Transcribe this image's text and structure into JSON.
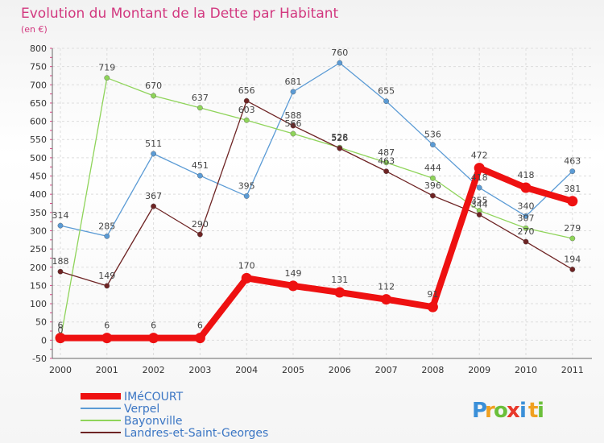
{
  "chart_data": {
    "type": "line",
    "title": "Evolution du Montant de la Dette par Habitant",
    "subtitle": "(en €)",
    "xlabel": "",
    "ylabel": "(en €)",
    "ylim": [
      -50,
      800
    ],
    "yticks": [
      -50,
      0,
      50,
      100,
      150,
      200,
      250,
      300,
      350,
      400,
      450,
      500,
      550,
      600,
      650,
      700,
      750,
      800
    ],
    "categories": [
      "2000",
      "2001",
      "2002",
      "2003",
      "2004",
      "2005",
      "2006",
      "2007",
      "2008",
      "2009",
      "2010",
      "2011"
    ],
    "series": [
      {
        "name": "IMéCOURT",
        "color": "#ee1111",
        "values": [
          6,
          6,
          6,
          6,
          170,
          149,
          131,
          112,
          91,
          472,
          418,
          381
        ]
      },
      {
        "name": "Verpel",
        "color": "#5b9bd5",
        "values": [
          314,
          285,
          511,
          451,
          395,
          681,
          760,
          655,
          536,
          418,
          340,
          463
        ]
      },
      {
        "name": "Bayonville",
        "color": "#8fd45a",
        "values": [
          0,
          719,
          670,
          637,
          603,
          566,
          528,
          487,
          444,
          355,
          307,
          279
        ]
      },
      {
        "name": "Landres-et-Saint-Georges",
        "color": "#6e2424",
        "values": [
          188,
          149,
          367,
          290,
          656,
          588,
          526,
          463,
          396,
          344,
          270,
          194
        ]
      }
    ]
  },
  "logo": {
    "letters": [
      "P",
      "r",
      "o",
      "x",
      "i",
      "t",
      "i"
    ],
    "colors": [
      "#3a8fd8",
      "#f0a020",
      "#6bbf3a",
      "#e8382a",
      "#3a8fd8",
      "#f0a020",
      "#6bbf3a"
    ]
  }
}
